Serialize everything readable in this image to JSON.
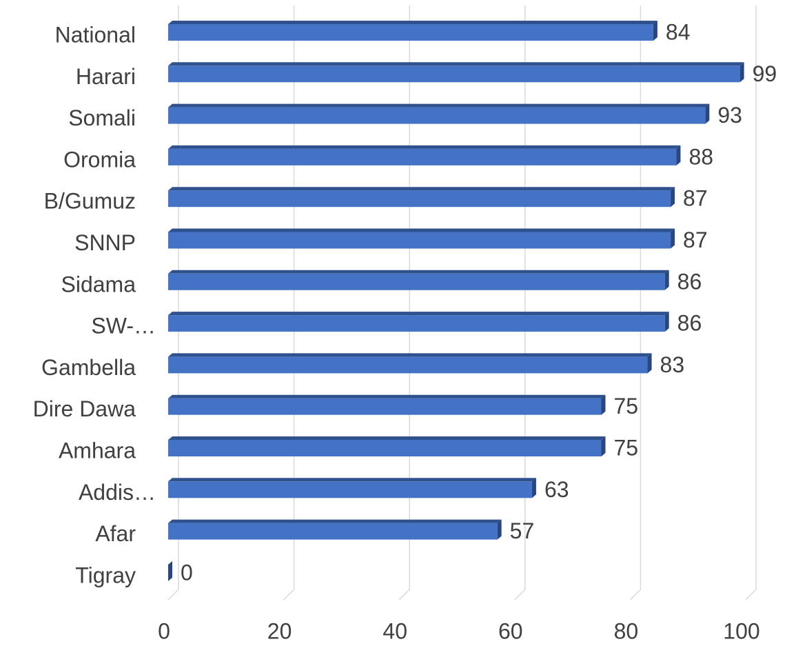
{
  "chart_data": {
    "type": "bar",
    "orientation": "horizontal",
    "categories": [
      "National",
      "Harari",
      "Somali",
      "Oromia",
      "B/Gumuz",
      "SNNP",
      "Sidama",
      "SW-…",
      "Gambella",
      "Dire Dawa",
      "Amhara",
      "Addis…",
      "Afar",
      "Tigray"
    ],
    "values": [
      84,
      99,
      93,
      88,
      87,
      87,
      86,
      86,
      83,
      75,
      75,
      63,
      57,
      0
    ],
    "color": "#4472c4",
    "xlim": [
      0,
      100
    ],
    "xticks": [
      0,
      20,
      40,
      60,
      80,
      100
    ],
    "grid": true
  }
}
